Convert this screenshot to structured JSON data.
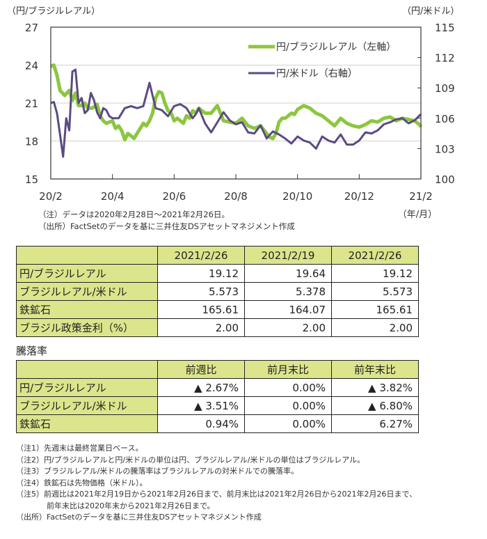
{
  "chart_data": {
    "type": "line",
    "left_axis_label": "（円/ブラジルレアル）",
    "right_axis_label": "（円/米ドル）",
    "x_unit_label": "（年/月）",
    "x_ticks": [
      "20/2",
      "20/4",
      "20/6",
      "20/8",
      "20/10",
      "20/12",
      "21/2"
    ],
    "left_ylim": [
      15,
      27
    ],
    "left_yticks": [
      "15",
      "18",
      "21",
      "24",
      "27"
    ],
    "right_ylim": [
      100,
      115
    ],
    "right_yticks": [
      "100",
      "103",
      "106",
      "109",
      "112",
      "115"
    ],
    "grid": true,
    "legend_position": "top-right",
    "x_range_months": [
      0,
      12
    ],
    "colors": {
      "brl": "#8cc63f",
      "usd": "#5b4a82"
    },
    "series": [
      {
        "name": "円/ブラジルレアル（左軸）",
        "axis": "left",
        "x": [
          0.0,
          0.1,
          0.2,
          0.3,
          0.45,
          0.6,
          0.7,
          0.8,
          0.9,
          1.0,
          1.1,
          1.2,
          1.35,
          1.5,
          1.6,
          1.7,
          1.8,
          1.9,
          2.0,
          2.1,
          2.2,
          2.3,
          2.4,
          2.5,
          2.6,
          2.7,
          2.8,
          2.9,
          3.0,
          3.1,
          3.2,
          3.3,
          3.4,
          3.5,
          3.6,
          3.7,
          3.8,
          3.9,
          4.0,
          4.1,
          4.2,
          4.3,
          4.4,
          4.5,
          4.6,
          4.7,
          4.8,
          4.9,
          5.0,
          5.2,
          5.4,
          5.6,
          5.8,
          6.0,
          6.2,
          6.4,
          6.6,
          6.8,
          7.0,
          7.1,
          7.2,
          7.3,
          7.4,
          7.5,
          7.6,
          7.7,
          7.8,
          7.9,
          8.0,
          8.2,
          8.4,
          8.6,
          8.8,
          9.0,
          9.2,
          9.4,
          9.6,
          9.8,
          10.0,
          10.2,
          10.4,
          10.6,
          10.8,
          11.0,
          11.2,
          11.4,
          11.6,
          11.8,
          11.95,
          12.0
        ],
        "values": [
          23.9,
          24.0,
          23.2,
          22.0,
          21.6,
          22.0,
          21.2,
          21.8,
          20.8,
          20.8,
          21.0,
          20.6,
          20.6,
          20.9,
          20.0,
          19.6,
          19.4,
          19.5,
          19.6,
          19.0,
          19.2,
          18.8,
          18.1,
          18.6,
          18.4,
          18.2,
          18.6,
          19.0,
          19.4,
          19.2,
          19.6,
          20.2,
          21.4,
          21.9,
          21.8,
          21.0,
          20.4,
          20.2,
          19.6,
          19.8,
          19.6,
          19.4,
          20.0,
          19.8,
          20.4,
          20.2,
          20.6,
          20.4,
          20.2,
          20.2,
          20.8,
          19.6,
          19.5,
          19.4,
          19.8,
          19.2,
          19.0,
          19.2,
          18.6,
          18.3,
          18.2,
          18.6,
          19.5,
          19.8,
          19.8,
          20.0,
          20.2,
          20.1,
          20.5,
          20.8,
          20.6,
          20.2,
          20.0,
          19.6,
          19.2,
          19.8,
          19.4,
          19.2,
          19.1,
          19.3,
          19.6,
          19.5,
          19.8,
          19.9,
          19.6,
          19.8,
          19.7,
          19.6,
          19.3,
          19.12
        ]
      },
      {
        "name": "円/米ドル（右軸）",
        "axis": "right",
        "x": [
          0.0,
          0.1,
          0.2,
          0.3,
          0.4,
          0.5,
          0.6,
          0.7,
          0.8,
          0.9,
          1.0,
          1.1,
          1.2,
          1.3,
          1.4,
          1.5,
          1.6,
          1.7,
          1.8,
          1.9,
          2.0,
          2.2,
          2.4,
          2.6,
          2.8,
          3.0,
          3.2,
          3.4,
          3.6,
          3.8,
          4.0,
          4.2,
          4.4,
          4.5,
          4.6,
          4.7,
          4.8,
          5.0,
          5.2,
          5.4,
          5.6,
          5.8,
          6.0,
          6.2,
          6.4,
          6.6,
          6.8,
          7.0,
          7.2,
          7.4,
          7.6,
          7.8,
          8.0,
          8.2,
          8.4,
          8.6,
          8.8,
          9.0,
          9.2,
          9.4,
          9.6,
          9.8,
          10.0,
          10.2,
          10.4,
          10.6,
          10.8,
          11.0,
          11.2,
          11.4,
          11.6,
          11.8,
          12.0
        ],
        "values": [
          107.5,
          107.6,
          106.5,
          104.4,
          102.2,
          106.0,
          104.8,
          110.6,
          110.8,
          107.5,
          108.0,
          106.5,
          106.8,
          108.5,
          107.8,
          106.6,
          106.0,
          107.0,
          106.8,
          106.2,
          106.0,
          106.0,
          107.0,
          107.2,
          107.0,
          107.2,
          109.5,
          107.0,
          106.8,
          106.2,
          107.2,
          107.4,
          107.0,
          106.5,
          106.0,
          106.4,
          107.0,
          105.5,
          104.6,
          105.6,
          106.6,
          105.8,
          105.4,
          105.6,
          104.6,
          104.5,
          105.3,
          104.0,
          104.7,
          104.4,
          104.0,
          103.5,
          104.2,
          103.8,
          103.6,
          103.0,
          104.2,
          103.8,
          103.6,
          104.4,
          103.4,
          103.4,
          103.8,
          104.6,
          104.5,
          104.8,
          105.4,
          105.6,
          105.9,
          106.0,
          105.5,
          105.8,
          106.4
        ]
      }
    ]
  },
  "chart_notes": [
    "（注）データは2020年2月28日～2021年2月26日。",
    "（出所）FactSetのデータを基に三井住友DSアセットマネジメント作成"
  ],
  "table1": {
    "headers": [
      "",
      "2021/2/26",
      "2021/2/19",
      "2021/2/26"
    ],
    "rows": [
      {
        "label": "円/ブラジルレアル",
        "values": [
          "19.12",
          "19.64",
          "19.12"
        ]
      },
      {
        "label": "ブラジルレアル/米ドル",
        "values": [
          "5.573",
          "5.378",
          "5.573"
        ]
      },
      {
        "label": "鉄鉱石",
        "values": [
          "165.61",
          "164.07",
          "165.61"
        ]
      },
      {
        "label": "ブラジル政策金利（%）",
        "values": [
          "2.00",
          "2.00",
          "2.00"
        ]
      }
    ]
  },
  "table2": {
    "title": "騰落率",
    "headers": [
      "",
      "前週比",
      "前月末比",
      "前年末比"
    ],
    "rows": [
      {
        "label": "円/ブラジルレアル",
        "values": [
          "▲ 2.67%",
          "0.00%",
          "▲ 3.82%"
        ]
      },
      {
        "label": "ブラジルレアル/米ドル",
        "values": [
          "▲ 3.51%",
          "0.00%",
          "▲ 6.80%"
        ]
      },
      {
        "label": "鉄鉱石",
        "values": [
          "0.94%",
          "0.00%",
          "6.27%"
        ]
      }
    ]
  },
  "footnotes": [
    "（注1）先週末は最終営業日ベース。",
    "（注2）円/ブラジルレアルと円/米ドルの単位は円、ブラジルレアル/米ドルの単位はブラジルレアル。",
    "（注3）ブラジルレアル/米ドルの騰落率はブラジルレアルの対米ドルでの騰落率。",
    "（注4）鉄鉱石は先物価格（米ドル）。",
    "（注5）前週比は2021年2月19日から2021年2月26日まで、前月末比は2021年2月26日から2021年2月26日まで、",
    "　　　　前年末比は2020年末から2021年2月26日まで。",
    "（出所）FactSetのデータを基に三井住友DSアセットマネジメント作成"
  ]
}
